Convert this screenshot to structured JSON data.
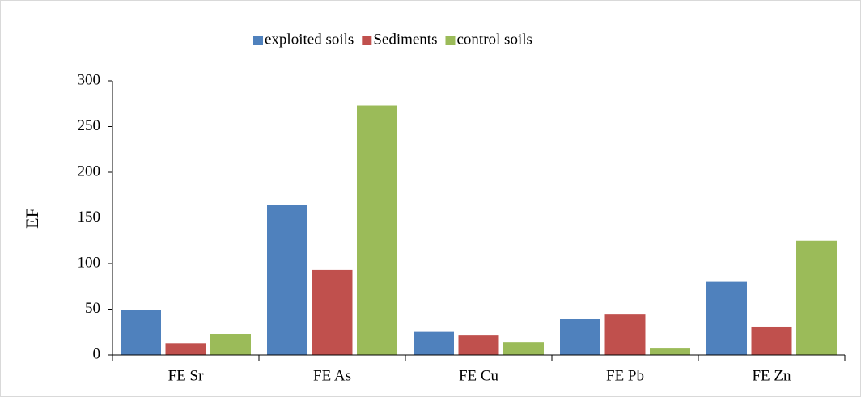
{
  "chart_data": {
    "type": "bar",
    "ylabel": "EF",
    "categories": [
      "FE Sr",
      "FE As",
      "FE Cu",
      "FE Pb",
      "FE Zn"
    ],
    "series": [
      {
        "name": "exploited soils",
        "color": "#4f81bd",
        "values": [
          49,
          164,
          26,
          39,
          80
        ]
      },
      {
        "name": "Sediments",
        "color": "#c0504d",
        "values": [
          13,
          93,
          22,
          45,
          31
        ]
      },
      {
        "name": "control soils",
        "color": "#9bbb59",
        "values": [
          23,
          273,
          14,
          7,
          125
        ]
      }
    ],
    "ylim": [
      0,
      300
    ],
    "yticks": [
      0,
      50,
      100,
      150,
      200,
      250,
      300
    ],
    "grid": false,
    "legend": "top"
  }
}
